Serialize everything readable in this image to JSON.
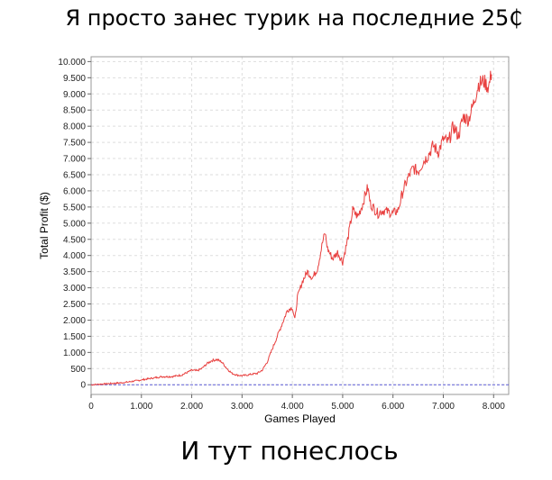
{
  "captions": {
    "top": "Я просто занес турик на последние 25₵",
    "bottom": "И тут понеслось"
  },
  "colors": {
    "line": "#e8403f",
    "zero_line": "#5a5ad6",
    "grid": "#dddddd",
    "frame": "#999999"
  },
  "chart_data": {
    "type": "line",
    "title": "",
    "xlabel": "Games Played",
    "ylabel": "Total Profit ($)",
    "xlim": [
      0,
      8300
    ],
    "ylim": [
      -300,
      10150
    ],
    "grid": true,
    "x_ticks": [
      0,
      1000,
      2000,
      3000,
      4000,
      5000,
      6000,
      7000,
      8000
    ],
    "x_tick_labels": [
      "0",
      "1.000",
      "2.000",
      "3.000",
      "4.000",
      "5.000",
      "6.000",
      "7.000",
      "8.000"
    ],
    "y_ticks": [
      0,
      500,
      1000,
      1500,
      2000,
      2500,
      3000,
      3500,
      4000,
      4500,
      5000,
      5500,
      6000,
      6500,
      7000,
      7500,
      8000,
      8500,
      9000,
      9500,
      10000
    ],
    "y_tick_labels": [
      "0",
      "500",
      "1.000",
      "1.500",
      "2.000",
      "2.500",
      "3.000",
      "3.500",
      "4.000",
      "4.500",
      "5.000",
      "5.500",
      "6.000",
      "6.500",
      "7.000",
      "7.500",
      "8.000",
      "8.500",
      "9.000",
      "9.500",
      "10.000"
    ],
    "series": [
      {
        "x": [
          0,
          200,
          400,
          600,
          800,
          1000,
          1200,
          1400,
          1600,
          1800,
          2000,
          2100,
          2200,
          2300,
          2400,
          2500,
          2600,
          2700,
          2800,
          2900,
          3000,
          3100,
          3200,
          3300,
          3400,
          3500,
          3600,
          3700,
          3800,
          3900,
          4000,
          4050,
          4100,
          4200,
          4300,
          4400,
          4500,
          4600,
          4650,
          4700,
          4800,
          4900,
          5000,
          5100,
          5200,
          5300,
          5400,
          5450,
          5500,
          5550,
          5600,
          5700,
          5800,
          5900,
          6000,
          6100,
          6200,
          6300,
          6400,
          6500,
          6600,
          6700,
          6800,
          6900,
          7000,
          7100,
          7200,
          7300,
          7400,
          7500,
          7600,
          7700,
          7800,
          7900,
          7950,
          7960
        ],
        "y": [
          0,
          20,
          40,
          60,
          100,
          150,
          200,
          250,
          250,
          300,
          450,
          430,
          500,
          650,
          750,
          780,
          700,
          500,
          350,
          300,
          280,
          300,
          330,
          350,
          450,
          700,
          1100,
          1500,
          1900,
          2300,
          2400,
          2000,
          2700,
          3200,
          3500,
          3300,
          3600,
          4400,
          4700,
          4200,
          3900,
          4100,
          3800,
          4500,
          5400,
          5200,
          5600,
          5900,
          6100,
          5600,
          5500,
          5300,
          5400,
          5350,
          5300,
          5400,
          6000,
          6400,
          6700,
          6600,
          6900,
          7100,
          7400,
          7200,
          7600,
          7500,
          8000,
          7700,
          8300,
          8200,
          8700,
          9300,
          9400,
          9200,
          9600,
          9600
        ]
      }
    ]
  }
}
